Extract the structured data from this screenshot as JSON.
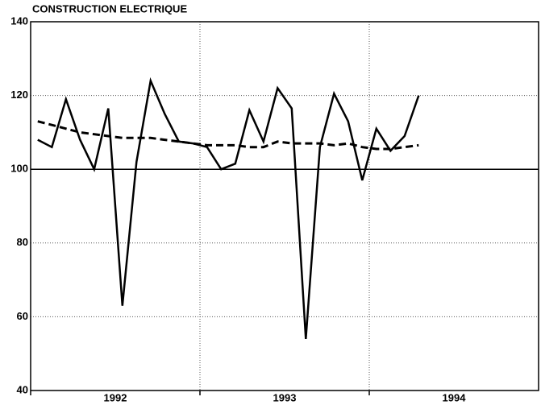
{
  "chart_data": {
    "type": "line",
    "title": "CONSTRUCTION ELECTRIQUE",
    "x_labels": [
      "1992",
      "1993",
      "1994"
    ],
    "periods_per_label": 12,
    "series": [
      {
        "color": "#000000",
        "style": "solid",
        "values": [
          108,
          106,
          119,
          108,
          100,
          116.5,
          63,
          102,
          124,
          115,
          107.5,
          107,
          106,
          100,
          101.5,
          116,
          107.5,
          122,
          116.5,
          54,
          106,
          120.5,
          113,
          97,
          111,
          105,
          109,
          120
        ]
      },
      {
        "color": "#000000",
        "style": "dashed",
        "values": [
          113,
          112,
          111,
          110,
          109.5,
          109,
          108.5,
          108.5,
          108.5,
          108,
          107.5,
          107,
          106.5,
          106.5,
          106.5,
          106,
          106,
          107.5,
          107,
          107,
          107,
          106.5,
          107,
          106,
          105.5,
          105.5,
          106,
          106.5
        ]
      }
    ],
    "ylim": [
      40,
      140
    ],
    "yticks": [
      40,
      60,
      80,
      100,
      120,
      140
    ],
    "reference_line": 100,
    "grid": true
  }
}
